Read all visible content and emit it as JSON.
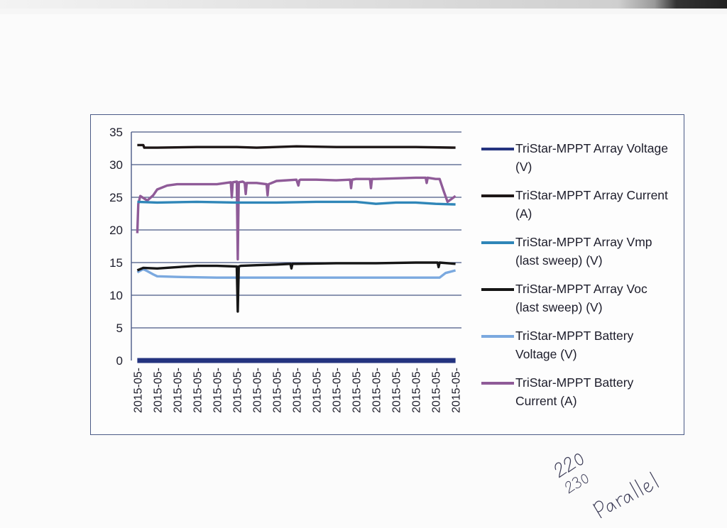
{
  "colors": {
    "axis": "#4a5a86",
    "grid": "#4a5a86",
    "frame": "#4a5a86",
    "text": "#1d1d2b"
  },
  "chart_data": {
    "type": "line",
    "title": "",
    "xlabel": "",
    "ylabel": "",
    "ylim": [
      0,
      35
    ],
    "yticks": [
      0,
      5,
      10,
      15,
      20,
      25,
      30,
      35
    ],
    "grid": true,
    "legend_position": "right",
    "categories": [
      "2015-05-",
      "2015-05-",
      "2015-05-",
      "2015-05-",
      "2015-05-",
      "2015-05-",
      "2015-05-",
      "2015-05-",
      "2015-05-",
      "2015-05-",
      "2015-05-",
      "2015-05-",
      "2015-05-",
      "2015-05-",
      "2015-05-",
      "2015-05-",
      "2015-05-"
    ],
    "series": [
      {
        "name": "TriStar-MPPT Array Voltage (V)",
        "color": "#24337f",
        "x": [
          0,
          16
        ],
        "values": [
          0,
          0
        ]
      },
      {
        "name": "TriStar-MPPT Array Current (A)",
        "color": "#1d1616",
        "x": [
          0,
          0.3,
          0.35,
          1,
          3,
          5,
          6,
          8,
          10,
          12,
          14,
          16
        ],
        "values": [
          33.0,
          33.0,
          32.6,
          32.6,
          32.7,
          32.7,
          32.6,
          32.8,
          32.7,
          32.7,
          32.7,
          32.6
        ]
      },
      {
        "name": "TriStar-MPPT Array Vmp (last sweep) (V)",
        "color": "#2f86b8",
        "x": [
          0,
          1,
          3,
          5,
          7,
          9,
          11,
          12,
          13,
          14,
          15,
          16
        ],
        "values": [
          24.3,
          24.2,
          24.3,
          24.2,
          24.2,
          24.3,
          24.3,
          24.0,
          24.2,
          24.2,
          24.0,
          23.9
        ]
      },
      {
        "name": "TriStar-MPPT Array Voc (last sweep) (V)",
        "color": "#161616",
        "x": [
          0,
          0.3,
          1,
          2,
          3,
          4,
          5,
          5.05,
          5.1,
          5.2,
          6,
          7,
          7.7,
          7.75,
          7.8,
          8,
          10,
          12,
          14,
          15.1,
          15.15,
          15.2,
          16
        ],
        "values": [
          13.8,
          14.2,
          14.1,
          14.3,
          14.5,
          14.5,
          14.4,
          7.5,
          14.4,
          14.5,
          14.6,
          14.7,
          14.8,
          14.1,
          14.8,
          14.8,
          14.9,
          14.9,
          15.0,
          15.0,
          14.3,
          15.0,
          14.8
        ]
      },
      {
        "name": "TriStar-MPPT Battery Voltage (V)",
        "color": "#7ba9df",
        "x": [
          0,
          0.3,
          0.5,
          0.8,
          1,
          2,
          4,
          5,
          5.05,
          5.1,
          6,
          8,
          10,
          12,
          14,
          15.2,
          15.5,
          16
        ],
        "values": [
          13.5,
          14.0,
          13.7,
          13.2,
          12.9,
          12.8,
          12.7,
          12.7,
          12.3,
          12.7,
          12.7,
          12.7,
          12.7,
          12.7,
          12.7,
          12.7,
          13.4,
          13.8
        ]
      },
      {
        "name": "TriStar-MPPT Battery Current (A)",
        "color": "#8f5b98",
        "x": [
          0,
          0.05,
          0.15,
          0.5,
          0.8,
          1,
          1.5,
          2,
          3,
          4,
          4.7,
          4.75,
          4.8,
          5,
          5.05,
          5.1,
          5.3,
          5.4,
          5.45,
          5.5,
          6,
          6.5,
          6.55,
          6.6,
          7,
          8,
          8.1,
          8.15,
          8.2,
          9,
          10,
          10.7,
          10.75,
          10.8,
          11,
          11.7,
          11.75,
          11.8,
          12,
          13,
          14,
          14.5,
          14.55,
          14.6,
          15,
          15.2,
          15.4,
          15.6,
          16
        ],
        "values": [
          19.5,
          24.0,
          25.2,
          24.5,
          25.3,
          26.2,
          26.8,
          27.0,
          27.0,
          27.0,
          27.3,
          25.0,
          27.3,
          27.4,
          15.5,
          27.3,
          27.4,
          27.2,
          25.5,
          27.2,
          27.2,
          27.0,
          25.3,
          27.0,
          27.5,
          27.7,
          26.8,
          27.6,
          27.7,
          27.7,
          27.6,
          27.7,
          26.4,
          27.7,
          27.8,
          27.8,
          26.4,
          27.8,
          27.8,
          27.9,
          28.0,
          28.0,
          27.2,
          28.0,
          27.8,
          27.8,
          26.0,
          24.3,
          25.2
        ]
      }
    ]
  },
  "handwriting": {
    "line1": "220",
    "line2": "230",
    "word": "parallel"
  }
}
